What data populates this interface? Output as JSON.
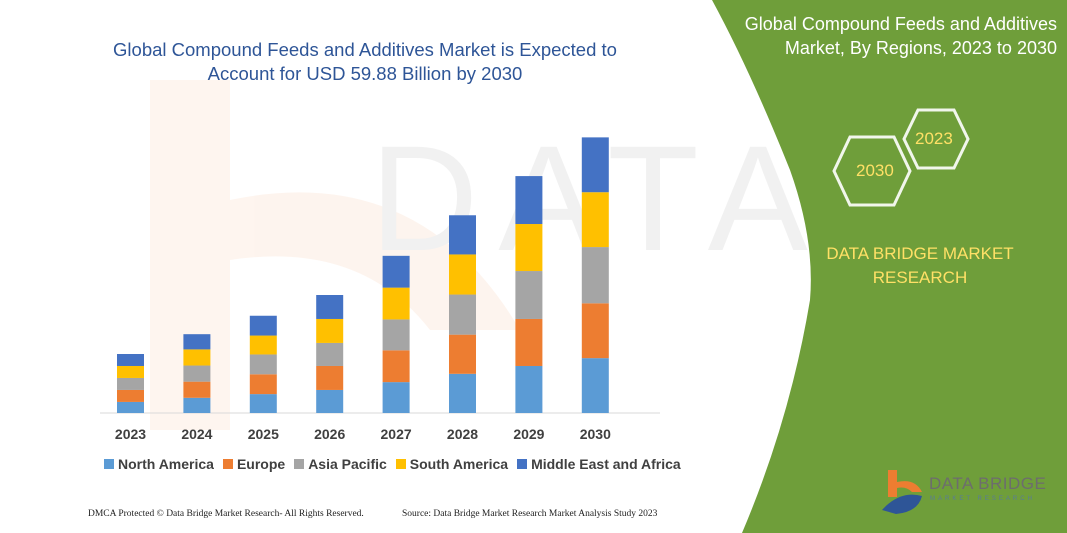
{
  "header": {
    "title": "Global Compound Feeds and Additives Market is Expected to Account for USD 59.88 Billion by 2030"
  },
  "side_panel": {
    "title": "Global Compound Feeds and Additives Market, By Regions, 2023 to 2030",
    "hex_left": "2030",
    "hex_right": "2023",
    "brand": "DATA BRIDGE MARKET RESEARCH",
    "logo_text": "DATA BRIDGE",
    "logo_sub": "MARKET RESEARCH",
    "panel_color": "#6f9e3a"
  },
  "footer": {
    "left": "DMCA Protected © Data Bridge Market Research- All Rights Reserved.",
    "right": "Source: Data Bridge Market Research  Market Analysis Study 2023"
  },
  "chart_data": {
    "type": "bar",
    "stacked": true,
    "title": "",
    "xlabel": "",
    "ylabel": "",
    "grid": false,
    "legend_position": "bottom",
    "categories": [
      "2023",
      "2024",
      "2025",
      "2026",
      "2027",
      "2028",
      "2029",
      "2030"
    ],
    "ylim": [
      0,
      60
    ],
    "series": [
      {
        "name": "North America",
        "color": "#5b9bd5",
        "values": [
          2.4,
          3.3,
          4.1,
          5.0,
          6.7,
          8.5,
          10.2,
          11.9
        ]
      },
      {
        "name": "Europe",
        "color": "#ed7d31",
        "values": [
          2.6,
          3.5,
          4.3,
          5.2,
          6.9,
          8.5,
          10.2,
          11.9
        ]
      },
      {
        "name": "Asia Pacific",
        "color": "#a5a5a5",
        "values": [
          2.6,
          3.5,
          4.3,
          5.0,
          6.7,
          8.7,
          10.4,
          12.2
        ]
      },
      {
        "name": "South America",
        "color": "#ffc000",
        "values": [
          2.6,
          3.5,
          4.1,
          5.2,
          6.9,
          8.7,
          10.2,
          11.9
        ]
      },
      {
        "name": "Middle East and Africa",
        "color": "#4472c4",
        "values": [
          2.6,
          3.3,
          4.3,
          5.2,
          6.9,
          8.5,
          10.4,
          11.9
        ]
      }
    ]
  }
}
